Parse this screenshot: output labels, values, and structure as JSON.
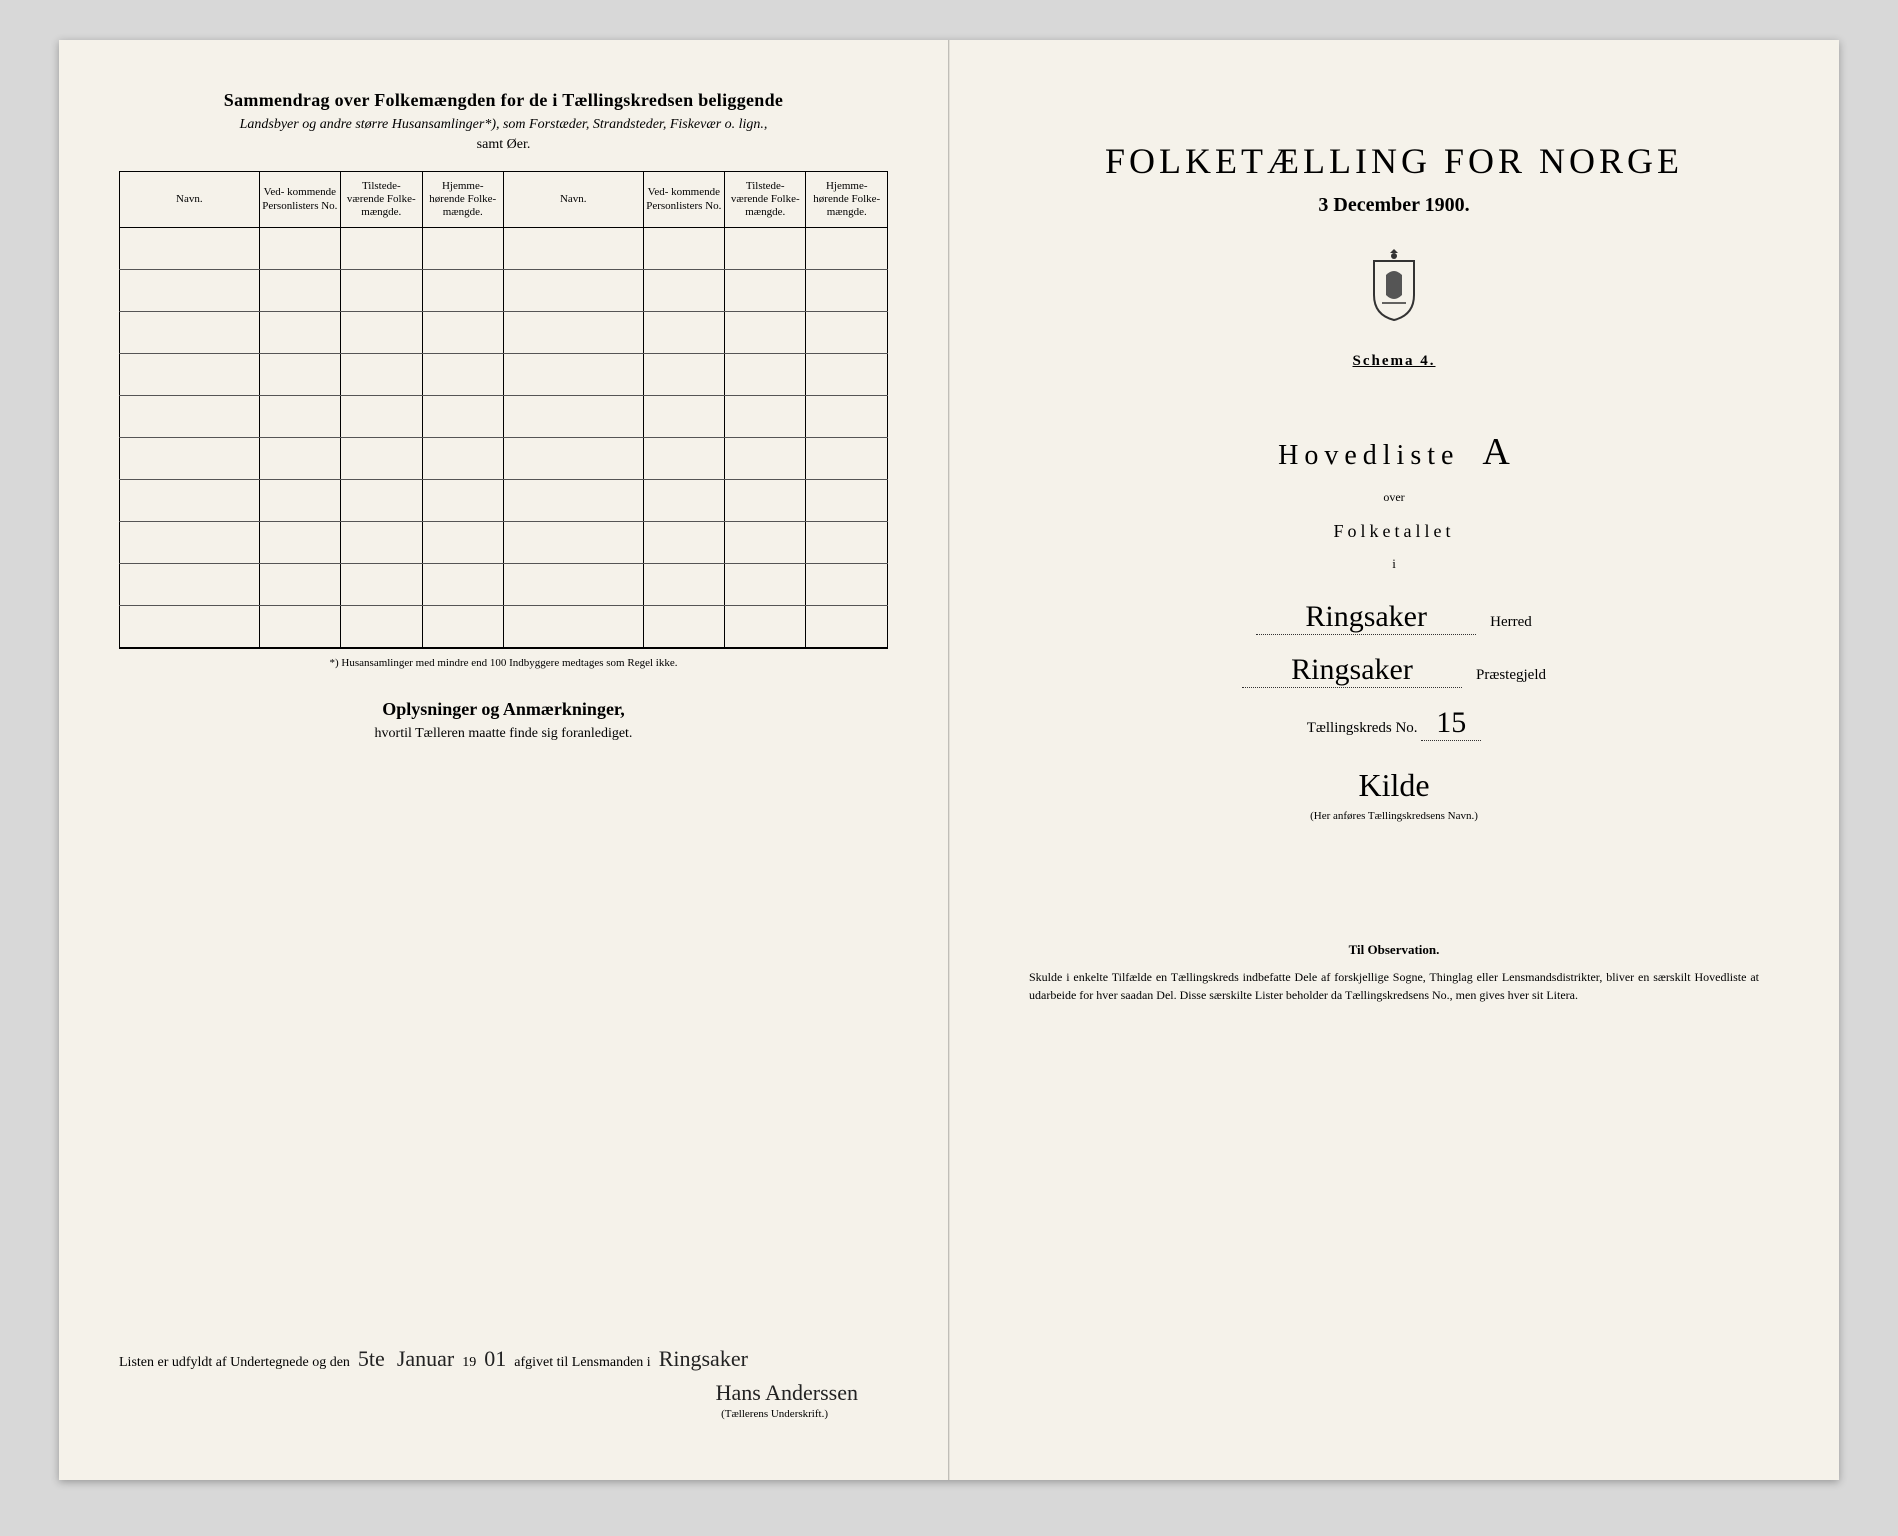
{
  "colors": {
    "page_bg": "#f5f2ea",
    "outer_bg": "#d8d8d8",
    "text": "#1a1a1a",
    "ink": "#222222",
    "border": "#000000"
  },
  "left": {
    "summary_title": "Sammendrag over Folkemængden for de i Tællingskredsen beliggende",
    "summary_subtitle": "Landsbyer og andre større Husansamlinger*), som Forstæder, Strandsteder, Fiskevær o. lign.,",
    "summary_subtitle2": "samt Øer.",
    "table": {
      "headers": [
        "Navn.",
        "Ved-\nkommende\nPersonlisters\nNo.",
        "Tilstede-\nværende\nFolke-\nmængde.",
        "Hjemme-\nhørende\nFolke-\nmængde.",
        "Navn.",
        "Ved-\nkommende\nPersonlisters\nNo.",
        "Tilstede-\nværende\nFolke-\nmængde.",
        "Hjemme-\nhørende\nFolke-\nmængde."
      ],
      "row_count": 10
    },
    "footnote": "*) Husansamlinger med mindre end 100 Indbyggere medtages som Regel ikke.",
    "oplysninger_title": "Oplysninger og Anmærkninger,",
    "oplysninger_sub": "hvortil Tælleren maatte finde sig foranlediget.",
    "signature": {
      "prefix": "Listen er udfyldt af Undertegnede og den",
      "date_day": "5te",
      "date_month": "Januar",
      "date_year_prefix": "19",
      "date_year_suffix": "01",
      "afgivet": "afgivet til Lensmanden i",
      "place": "Ringsaker",
      "name": "Hans Anderssen",
      "caption": "(Tællerens Underskrift.)"
    }
  },
  "right": {
    "main_title": "FOLKETÆLLING FOR NORGE",
    "main_date": "3 December 1900.",
    "schema": "Schema 4.",
    "hovedliste": "Hovedliste",
    "hovedliste_letter": "A",
    "over": "over",
    "folketallet": "Folketallet",
    "i": "i",
    "herred_value": "Ringsaker",
    "herred_label": "Herred",
    "praestegjeld_value": "Ringsaker",
    "praestegjeld_label": "Præstegjeld",
    "kreds_label": "Tællingskreds No.",
    "kreds_no": "15",
    "kreds_name": "Kilde",
    "kreds_caption": "(Her anføres Tællingskredsens Navn.)",
    "observation_title": "Til Observation.",
    "observation_text": "Skulde i enkelte Tilfælde en Tællingskreds indbefatte Dele af forskjellige Sogne, Thinglag eller Lensmandsdistrikter, bliver en særskilt Hovedliste at udarbeide for hver saadan Del. Disse særskilte Lister beholder da Tællingskredsens No., men gives hver sit Litera."
  }
}
